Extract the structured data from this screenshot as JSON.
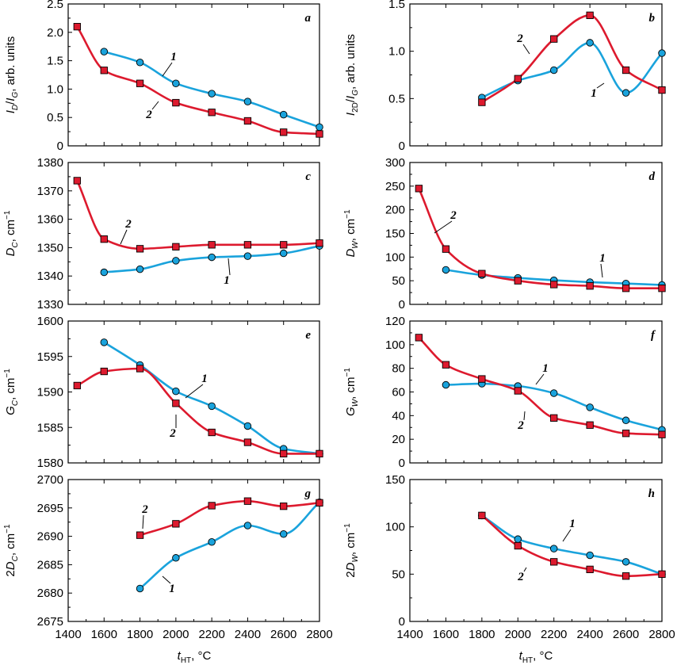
{
  "colors": {
    "series1": "#1aa3dc",
    "series2": "#dd1a2e"
  },
  "x_axis": {
    "ticks": [
      "1400",
      "1600",
      "1800",
      "2000",
      "2200",
      "2400",
      "2600",
      "2800"
    ],
    "label_main": "t",
    "label_sub": "HT",
    "label_unit": ", °C"
  },
  "chart_data": [
    {
      "panel": "a",
      "type": "line",
      "ylabel": {
        "main": "I",
        "sub": "D",
        "mid": "/I",
        "sub2": "G",
        "tail": ", arb. units"
      },
      "ylim": [
        0,
        2.5
      ],
      "yticks": [
        "0",
        "0.5",
        "1.0",
        "1.5",
        "2.0",
        "2.5"
      ],
      "yvalues": [
        0,
        0.5,
        1.0,
        1.5,
        2.0,
        2.5
      ],
      "series": [
        {
          "name": "1",
          "marker": "circle",
          "points": [
            [
              1600,
              1.66
            ],
            [
              1800,
              1.47
            ],
            [
              2000,
              1.1
            ],
            [
              2200,
              0.92
            ],
            [
              2400,
              0.78
            ],
            [
              2600,
              0.55
            ],
            [
              2800,
              0.33
            ]
          ]
        },
        {
          "name": "2",
          "marker": "square",
          "points": [
            [
              1450,
              2.1
            ],
            [
              1600,
              1.33
            ],
            [
              1800,
              1.1
            ],
            [
              2000,
              0.76
            ],
            [
              2200,
              0.59
            ],
            [
              2400,
              0.44
            ],
            [
              2600,
              0.24
            ],
            [
              2800,
              0.21
            ]
          ]
        }
      ]
    },
    {
      "panel": "b",
      "type": "line",
      "ylabel": {
        "main": "I",
        "sub": "2D",
        "mid": "/I",
        "sub2": "G",
        "tail": ", arb. units"
      },
      "ylim": [
        0,
        1.5
      ],
      "yticks": [
        "0",
        "0.5",
        "1.0",
        "1.5"
      ],
      "yvalues": [
        0,
        0.5,
        1.0,
        1.5
      ],
      "series": [
        {
          "name": "1",
          "marker": "circle",
          "points": [
            [
              1800,
              0.51
            ],
            [
              2000,
              0.69
            ],
            [
              2200,
              0.8
            ],
            [
              2400,
              1.09
            ],
            [
              2600,
              0.56
            ],
            [
              2800,
              0.98
            ]
          ]
        },
        {
          "name": "2",
          "marker": "square",
          "points": [
            [
              1800,
              0.46
            ],
            [
              2000,
              0.71
            ],
            [
              2200,
              1.13
            ],
            [
              2400,
              1.38
            ],
            [
              2600,
              0.8
            ],
            [
              2800,
              0.59
            ]
          ]
        }
      ]
    },
    {
      "panel": "c",
      "type": "line",
      "ylabel": {
        "main": "D",
        "sub": "C",
        "tail": ", cm",
        "sup": "−1"
      },
      "ylim": [
        1330,
        1380
      ],
      "yticks": [
        "1330",
        "1340",
        "1350",
        "1360",
        "1370",
        "1380"
      ],
      "yvalues": [
        1330,
        1340,
        1350,
        1360,
        1370,
        1380
      ],
      "series": [
        {
          "name": "1",
          "marker": "circle",
          "points": [
            [
              1600,
              1341.3
            ],
            [
              1800,
              1342.4
            ],
            [
              2000,
              1345.4
            ],
            [
              2200,
              1346.6
            ],
            [
              2400,
              1347.0
            ],
            [
              2600,
              1348.0
            ],
            [
              2800,
              1350.6
            ]
          ]
        },
        {
          "name": "2",
          "marker": "square",
          "points": [
            [
              1450,
              1373.6
            ],
            [
              1600,
              1353.0
            ],
            [
              1800,
              1349.6
            ],
            [
              2000,
              1350.3
            ],
            [
              2200,
              1351.0
            ],
            [
              2400,
              1351.0
            ],
            [
              2600,
              1351.0
            ],
            [
              2800,
              1351.6
            ]
          ]
        }
      ]
    },
    {
      "panel": "d",
      "type": "line",
      "ylabel": {
        "main": "D",
        "sub": "W",
        "tail": ", cm",
        "sup": "−1"
      },
      "ylim": [
        0,
        300
      ],
      "yticks": [
        "0",
        "50",
        "100",
        "150",
        "200",
        "250",
        "300"
      ],
      "yvalues": [
        0,
        50,
        100,
        150,
        200,
        250,
        300
      ],
      "series": [
        {
          "name": "1",
          "marker": "circle",
          "points": [
            [
              1600,
              73
            ],
            [
              1800,
              62
            ],
            [
              2000,
              56
            ],
            [
              2200,
              51
            ],
            [
              2400,
              47
            ],
            [
              2600,
              44
            ],
            [
              2800,
              41
            ]
          ]
        },
        {
          "name": "2",
          "marker": "square",
          "points": [
            [
              1450,
              245
            ],
            [
              1600,
              117
            ],
            [
              1800,
              65
            ],
            [
              2000,
              50
            ],
            [
              2200,
              42
            ],
            [
              2400,
              39
            ],
            [
              2600,
              34
            ],
            [
              2800,
              34
            ]
          ]
        }
      ]
    },
    {
      "panel": "e",
      "type": "line",
      "ylabel": {
        "main": "G",
        "sub": "C",
        "tail": ", cm",
        "sup": "−1"
      },
      "ylim": [
        1580,
        1600
      ],
      "yticks": [
        "1580",
        "1585",
        "1590",
        "1595",
        "1600"
      ],
      "yvalues": [
        1580,
        1585,
        1590,
        1595,
        1600
      ],
      "series": [
        {
          "name": "1",
          "marker": "circle",
          "points": [
            [
              1600,
              1597.0
            ],
            [
              1800,
              1593.8
            ],
            [
              2000,
              1590.1
            ],
            [
              2200,
              1588.0
            ],
            [
              2400,
              1585.2
            ],
            [
              2600,
              1582.0
            ],
            [
              2800,
              1581.3
            ]
          ]
        },
        {
          "name": "2",
          "marker": "square",
          "points": [
            [
              1450,
              1590.9
            ],
            [
              1600,
              1592.9
            ],
            [
              1800,
              1593.3
            ],
            [
              2000,
              1588.4
            ],
            [
              2200,
              1584.3
            ],
            [
              2400,
              1582.9
            ],
            [
              2600,
              1581.3
            ],
            [
              2800,
              1581.3
            ]
          ]
        }
      ]
    },
    {
      "panel": "f",
      "type": "line",
      "ylabel": {
        "main": "G",
        "sub": "W",
        "tail": ", cm",
        "sup": "−1"
      },
      "ylim": [
        0,
        120
      ],
      "yticks": [
        "0",
        "20",
        "40",
        "60",
        "80",
        "100",
        "120"
      ],
      "yvalues": [
        0,
        20,
        40,
        60,
        80,
        100,
        120
      ],
      "series": [
        {
          "name": "1",
          "marker": "circle",
          "points": [
            [
              1600,
              66
            ],
            [
              1800,
              67
            ],
            [
              2000,
              65
            ],
            [
              2200,
              59
            ],
            [
              2400,
              47
            ],
            [
              2600,
              36
            ],
            [
              2800,
              28
            ]
          ]
        },
        {
          "name": "2",
          "marker": "square",
          "points": [
            [
              1450,
              106
            ],
            [
              1600,
              83
            ],
            [
              1800,
              71
            ],
            [
              2000,
              61
            ],
            [
              2200,
              38
            ],
            [
              2400,
              32
            ],
            [
              2600,
              25
            ],
            [
              2800,
              24
            ]
          ]
        }
      ]
    },
    {
      "panel": "g",
      "type": "line",
      "ylabel": {
        "main": "2D",
        "sub": "C",
        "tail": ", cm",
        "sup": "−1"
      },
      "ylim": [
        2675,
        2700
      ],
      "yticks": [
        "2675",
        "2680",
        "2685",
        "2690",
        "2695",
        "2700"
      ],
      "yvalues": [
        2675,
        2680,
        2685,
        2690,
        2695,
        2700
      ],
      "series": [
        {
          "name": "1",
          "marker": "circle",
          "points": [
            [
              1800,
              2680.8
            ],
            [
              2000,
              2686.2
            ],
            [
              2200,
              2689.0
            ],
            [
              2400,
              2691.9
            ],
            [
              2600,
              2690.4
            ],
            [
              2800,
              2696.0
            ]
          ]
        },
        {
          "name": "2",
          "marker": "square",
          "points": [
            [
              1800,
              2690.2
            ],
            [
              2000,
              2692.2
            ],
            [
              2200,
              2695.4
            ],
            [
              2400,
              2696.2
            ],
            [
              2600,
              2695.3
            ],
            [
              2800,
              2695.9
            ]
          ]
        }
      ]
    },
    {
      "panel": "h",
      "type": "line",
      "ylabel": {
        "main": "2D",
        "sub": "W",
        "tail": ", cm",
        "sup": "−1"
      },
      "ylim": [
        0,
        150
      ],
      "yticks": [
        "0",
        "50",
        "100",
        "150"
      ],
      "yvalues": [
        0,
        50,
        100,
        150
      ],
      "series": [
        {
          "name": "1",
          "marker": "circle",
          "points": [
            [
              1800,
              112
            ],
            [
              2000,
              87
            ],
            [
              2200,
              77
            ],
            [
              2400,
              70
            ],
            [
              2600,
              63
            ],
            [
              2800,
              50
            ]
          ]
        },
        {
          "name": "2",
          "marker": "square",
          "points": [
            [
              1800,
              112
            ],
            [
              2000,
              80
            ],
            [
              2200,
              63
            ],
            [
              2400,
              55
            ],
            [
              2600,
              48
            ],
            [
              2800,
              50
            ]
          ]
        }
      ]
    }
  ]
}
